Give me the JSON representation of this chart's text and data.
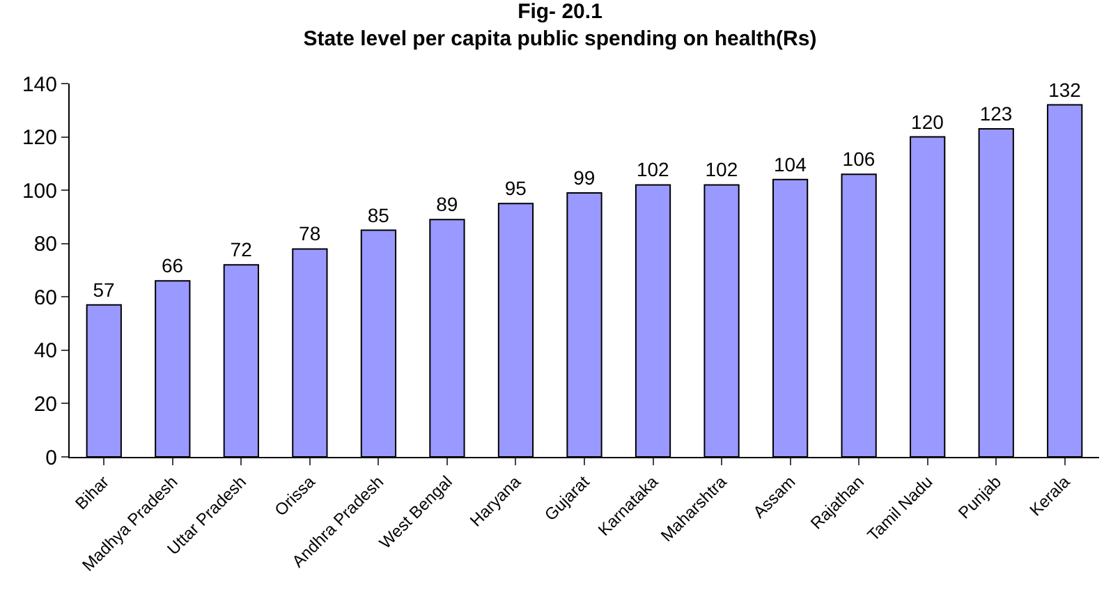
{
  "chart_data": {
    "type": "bar",
    "title": "Fig- 20.1\nState level per capita public spending on health(Rs)",
    "categories": [
      "Bihar",
      "Madhya Pradesh",
      "Uttar Pradesh",
      "Orissa",
      "Andhra Pradesh",
      "West Bengal",
      "Haryana",
      "Gujarat",
      "Karnataka",
      "Maharshtra",
      "Assam",
      "Rajathan",
      "Tamil Nadu",
      "Punjab",
      "Kerala"
    ],
    "values": [
      57,
      66,
      72,
      78,
      85,
      89,
      95,
      99,
      102,
      102,
      104,
      106,
      120,
      123,
      132
    ],
    "color": "#9999ff",
    "ylim": [
      0,
      140
    ],
    "yticks": [
      0,
      20,
      40,
      60,
      80,
      100,
      120,
      140
    ],
    "data_labels": true,
    "grid": false,
    "legend": false
  }
}
